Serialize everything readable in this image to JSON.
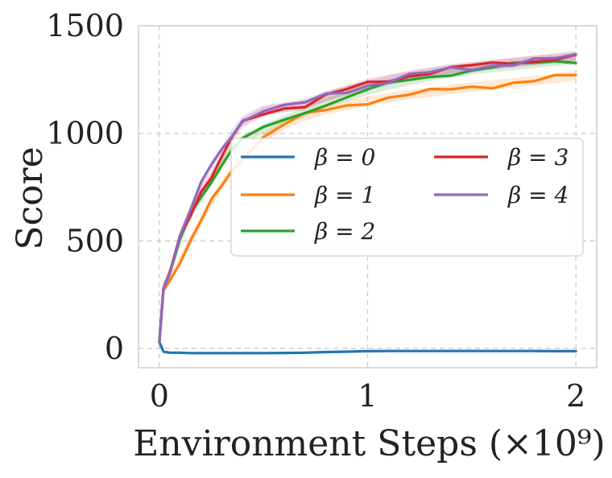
{
  "chart_data": {
    "type": "line",
    "title": "",
    "xlabel": "Environment Steps (×10⁹)",
    "ylabel": "Score",
    "xlim": [
      -0.1,
      2.1
    ],
    "ylim": [
      -90,
      1500
    ],
    "xticks": [
      0,
      1,
      2
    ],
    "xtick_labels": [
      "0",
      "1",
      "2"
    ],
    "yticks": [
      0,
      500,
      1000,
      1500
    ],
    "ytick_labels": [
      "0",
      "500",
      "1000",
      "1500"
    ],
    "grid": true,
    "legend_position": "center-right",
    "legend_columns": 2,
    "x": [
      0,
      0.02,
      0.05,
      0.1,
      0.15,
      0.2,
      0.25,
      0.3,
      0.35,
      0.4,
      0.5,
      0.6,
      0.7,
      0.8,
      0.9,
      1.0,
      1.1,
      1.2,
      1.3,
      1.4,
      1.5,
      1.6,
      1.7,
      1.8,
      1.9,
      2.0
    ],
    "series": [
      {
        "name": "β = 0",
        "color": "#1f77b4",
        "values": [
          30,
          -15,
          -20,
          -20,
          -22,
          -22,
          -22,
          -22,
          -22,
          -22,
          -22,
          -21,
          -20,
          -17,
          -15,
          -13,
          -12,
          -12,
          -12,
          -12,
          -12,
          -12,
          -12,
          -12,
          -13,
          -13
        ]
      },
      {
        "name": "β = 1",
        "color": "#ff7f0e",
        "values": [
          30,
          270,
          320,
          410,
          500,
          590,
          680,
          760,
          830,
          890,
          980,
          1040,
          1080,
          1110,
          1130,
          1150,
          1165,
          1180,
          1190,
          1205,
          1215,
          1225,
          1235,
          1245,
          1255,
          1270
        ]
      },
      {
        "name": "β = 2",
        "color": "#2ca02c",
        "values": [
          30,
          280,
          350,
          500,
          620,
          700,
          780,
          860,
          930,
          970,
          1020,
          1060,
          1100,
          1140,
          1170,
          1200,
          1225,
          1245,
          1265,
          1280,
          1295,
          1305,
          1315,
          1325,
          1335,
          1340
        ]
      },
      {
        "name": "β = 3",
        "color": "#d62728",
        "values": [
          30,
          280,
          350,
          520,
          630,
          730,
          800,
          880,
          980,
          1050,
          1100,
          1120,
          1130,
          1170,
          1200,
          1230,
          1250,
          1270,
          1285,
          1300,
          1310,
          1320,
          1330,
          1340,
          1350,
          1360
        ]
      },
      {
        "name": "β = 4",
        "color": "#9467bd",
        "values": [
          30,
          280,
          360,
          530,
          650,
          760,
          850,
          920,
          1000,
          1060,
          1110,
          1120,
          1140,
          1175,
          1200,
          1225,
          1245,
          1265,
          1280,
          1295,
          1305,
          1318,
          1328,
          1338,
          1345,
          1355
        ]
      }
    ]
  }
}
